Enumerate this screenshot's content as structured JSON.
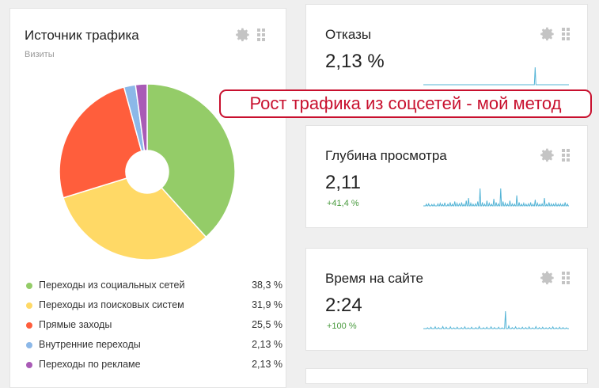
{
  "traffic_source": {
    "title": "Источник трафика",
    "subtitle": "Визиты",
    "settings_icon": "gear-icon",
    "drag_icon": "drag-handle-icon",
    "legend": [
      {
        "label": "Переходы из социальных сетей",
        "value": "38,3 %",
        "color": "#94cc68"
      },
      {
        "label": "Переходы из поисковых систем",
        "value": "31,9 %",
        "color": "#ffd966"
      },
      {
        "label": "Прямые заходы",
        "value": "25,5 %",
        "color": "#ff5e3c"
      },
      {
        "label": "Внутренние переходы",
        "value": "2,13 %",
        "color": "#8cb8e8"
      },
      {
        "label": "Переходы по рекламе",
        "value": "2,13 %",
        "color": "#a95bb6"
      }
    ]
  },
  "chart_data": {
    "type": "pie",
    "categories": [
      "Переходы из социальных сетей",
      "Переходы из поисковых систем",
      "Прямые заходы",
      "Внутренние переходы",
      "Переходы по рекламе"
    ],
    "values": [
      38.3,
      31.9,
      25.5,
      2.13,
      2.13
    ],
    "colors": [
      "#94cc68",
      "#ffd966",
      "#ff5e3c",
      "#8cb8e8",
      "#a95bb6"
    ],
    "title": "Источник трафика",
    "subtitle": "Визиты"
  },
  "metrics": {
    "bounce": {
      "title": "Отказы",
      "value": "2,13 %",
      "delta": "",
      "spark": [
        0,
        0,
        0,
        0,
        0,
        0,
        0,
        0,
        0,
        0,
        0,
        0,
        0,
        0,
        0,
        0,
        0,
        0,
        0,
        0,
        0,
        0,
        0,
        0,
        0,
        0,
        0,
        0,
        0,
        0,
        0,
        0,
        0,
        0,
        0,
        0,
        0,
        0,
        0,
        0,
        0,
        0,
        0,
        0,
        0,
        0,
        0,
        0,
        0,
        0,
        0,
        0,
        0,
        0,
        0,
        0,
        0,
        0,
        0,
        0,
        0,
        0,
        0,
        0,
        0,
        0,
        0,
        0,
        0,
        0,
        0,
        0,
        0,
        0,
        0,
        0,
        0,
        0,
        0,
        0,
        0,
        0,
        0,
        0,
        0,
        0,
        0,
        0,
        0,
        0,
        0,
        0,
        0,
        0,
        0,
        0,
        0,
        0,
        0,
        0,
        0,
        0,
        0,
        0,
        0,
        0,
        0,
        0,
        0,
        0,
        0,
        0,
        0,
        0,
        0,
        0,
        0,
        0,
        0,
        0,
        0,
        0,
        0,
        0,
        0,
        0,
        0,
        0,
        0,
        0,
        0,
        0,
        0,
        0,
        0,
        0,
        0,
        0,
        0,
        1,
        0,
        0,
        0,
        0,
        0,
        0,
        0,
        0,
        0,
        0,
        0,
        0,
        0,
        0,
        0,
        0,
        0,
        0,
        0,
        0,
        0,
        0,
        0,
        0,
        0,
        0,
        0,
        0,
        0,
        0,
        0,
        0,
        0,
        0,
        0,
        0,
        0,
        0,
        0,
        0,
        0,
        0
      ]
    },
    "depth": {
      "title": "Глубина просмотра",
      "value": "2,11",
      "delta": "+41,4 %",
      "spark": [
        0,
        0,
        0,
        0,
        0.1,
        0,
        0,
        0.12,
        0,
        0,
        0,
        0.08,
        0,
        0,
        0.1,
        0,
        0,
        0,
        0,
        0.12,
        0,
        0,
        0.15,
        0,
        0,
        0.1,
        0,
        0,
        0.18,
        0,
        0,
        0,
        0.1,
        0,
        0,
        0.2,
        0,
        0,
        0.1,
        0,
        0,
        0.25,
        0,
        0,
        0.15,
        0,
        0,
        0.12,
        0,
        0,
        0.2,
        0,
        0,
        0.1,
        0,
        0,
        0.3,
        0,
        0,
        0.45,
        0,
        0,
        0.15,
        0,
        0,
        0.1,
        0,
        0,
        0.12,
        0,
        0,
        0.25,
        0,
        0,
        1,
        0,
        0,
        0.2,
        0,
        0,
        0.1,
        0,
        0,
        0.3,
        0,
        0,
        0.15,
        0,
        0,
        0.1,
        0,
        0,
        0.4,
        0,
        0,
        0.2,
        0,
        0,
        0.12,
        0,
        0,
        1,
        0,
        0,
        0.25,
        0,
        0,
        0.15,
        0,
        0,
        0.1,
        0,
        0,
        0.3,
        0,
        0,
        0.12,
        0,
        0,
        0.1,
        0,
        0,
        0.6,
        0,
        0,
        0.2,
        0,
        0,
        0.1,
        0,
        0,
        0.15,
        0,
        0,
        0.1,
        0,
        0,
        0.12,
        0,
        0,
        0.2,
        0,
        0,
        0.1,
        0,
        0,
        0.35,
        0,
        0,
        0.15,
        0,
        0,
        0.1,
        0,
        0,
        0.12,
        0,
        0,
        0.45,
        0,
        0,
        0.1,
        0,
        0,
        0.2,
        0,
        0,
        0.12,
        0,
        0,
        0.1,
        0,
        0,
        0.15,
        0,
        0,
        0.1,
        0,
        0,
        0.12,
        0,
        0,
        0.1,
        0,
        0,
        0.2,
        0,
        0,
        0.1,
        0,
        0
      ]
    },
    "time": {
      "title": "Время на сайте",
      "value": "2:24",
      "delta": "+100 %",
      "spark": [
        0,
        0,
        0,
        0,
        0,
        0.05,
        0,
        0,
        0,
        0.08,
        0,
        0,
        0,
        0,
        0.1,
        0,
        0,
        0,
        0.06,
        0,
        0,
        0,
        0,
        0.12,
        0,
        0,
        0,
        0.08,
        0,
        0,
        0,
        0,
        0.1,
        0,
        0,
        0,
        0.05,
        0,
        0,
        0,
        0.08,
        0,
        0,
        0,
        0,
        0.06,
        0,
        0,
        0,
        0.1,
        0,
        0,
        0,
        0.05,
        0,
        0,
        0,
        0.08,
        0,
        0,
        0,
        0,
        0.06,
        0,
        0,
        0,
        0.12,
        0,
        0,
        0,
        0,
        0.05,
        0,
        0,
        0,
        0.08,
        0,
        0,
        0,
        0,
        0.1,
        0,
        0,
        0,
        0.06,
        0,
        0,
        0,
        0,
        0.08,
        0,
        0,
        0,
        0.05,
        0,
        0,
        0,
        1,
        0,
        0,
        0,
        0.15,
        0,
        0,
        0,
        0.06,
        0,
        0,
        0,
        0.1,
        0,
        0,
        0,
        0.05,
        0,
        0,
        0,
        0.08,
        0,
        0,
        0,
        0.06,
        0,
        0,
        0,
        0.1,
        0,
        0,
        0,
        0.05,
        0,
        0,
        0,
        0.12,
        0,
        0,
        0,
        0.06,
        0,
        0,
        0,
        0.08,
        0,
        0,
        0,
        0.05,
        0,
        0,
        0,
        0.06,
        0,
        0,
        0,
        0.1,
        0,
        0,
        0,
        0.05,
        0,
        0,
        0,
        0.08,
        0,
        0,
        0,
        0.06,
        0,
        0,
        0,
        0.05,
        0,
        0,
        0
      ]
    }
  },
  "banner": {
    "text": "Рост трафика из соцсетей - мой метод"
  },
  "colors": {
    "spark_line": "#54b4d6",
    "banner_red": "#c8102e",
    "positive_delta": "#4a9b3f"
  }
}
